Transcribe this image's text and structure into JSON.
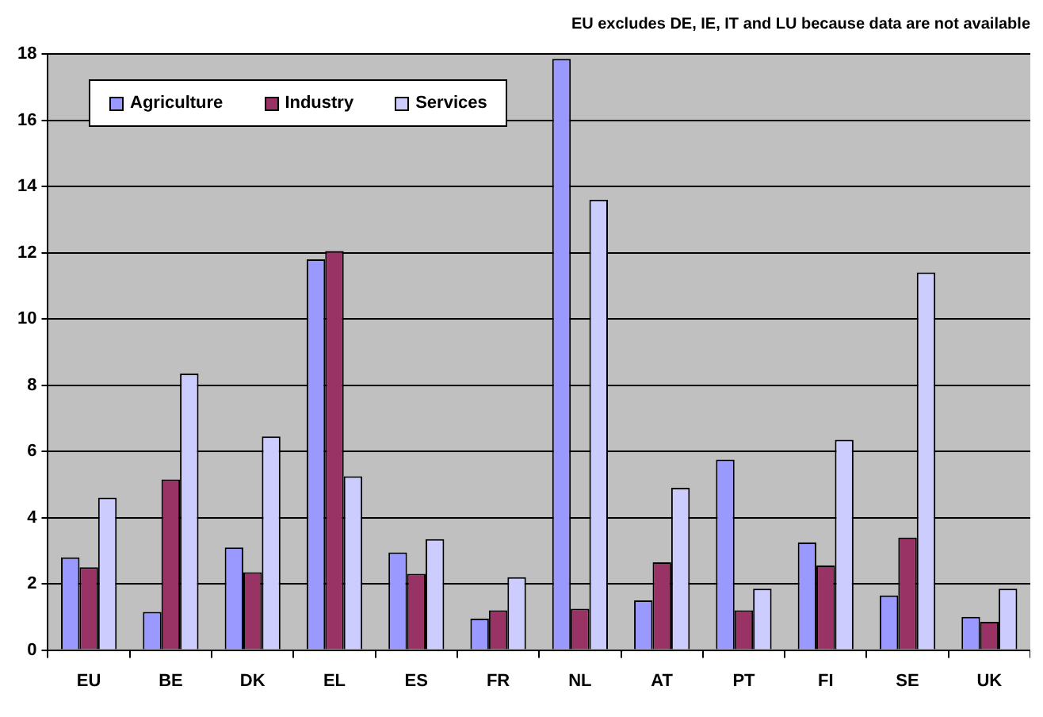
{
  "chart_data": {
    "type": "bar",
    "annotations": [
      "EU excludes DE, IE, IT and LU because data are not available"
    ],
    "categories": [
      "EU",
      "BE",
      "DK",
      "EL",
      "ES",
      "FR",
      "NL",
      "AT",
      "PT",
      "FI",
      "SE",
      "UK"
    ],
    "series": [
      {
        "name": "Agriculture",
        "color": "#9999ff",
        "values": [
          2.8,
          1.15,
          3.1,
          11.8,
          2.95,
          0.95,
          17.85,
          1.5,
          5.75,
          3.25,
          1.65,
          1.0
        ]
      },
      {
        "name": "Industry",
        "color": "#993366",
        "values": [
          2.5,
          5.15,
          2.35,
          12.05,
          2.3,
          1.2,
          1.25,
          2.65,
          1.2,
          2.55,
          3.4,
          0.85
        ]
      },
      {
        "name": "Services",
        "color": "#ccccff",
        "values": [
          4.6,
          8.35,
          6.45,
          5.25,
          3.35,
          2.2,
          13.6,
          4.9,
          1.85,
          6.35,
          11.4,
          1.85
        ]
      }
    ],
    "ylim": [
      0,
      18
    ],
    "yticks": [
      0,
      2,
      4,
      6,
      8,
      10,
      12,
      14,
      16,
      18
    ],
    "grid": "y",
    "legend": "top left"
  }
}
